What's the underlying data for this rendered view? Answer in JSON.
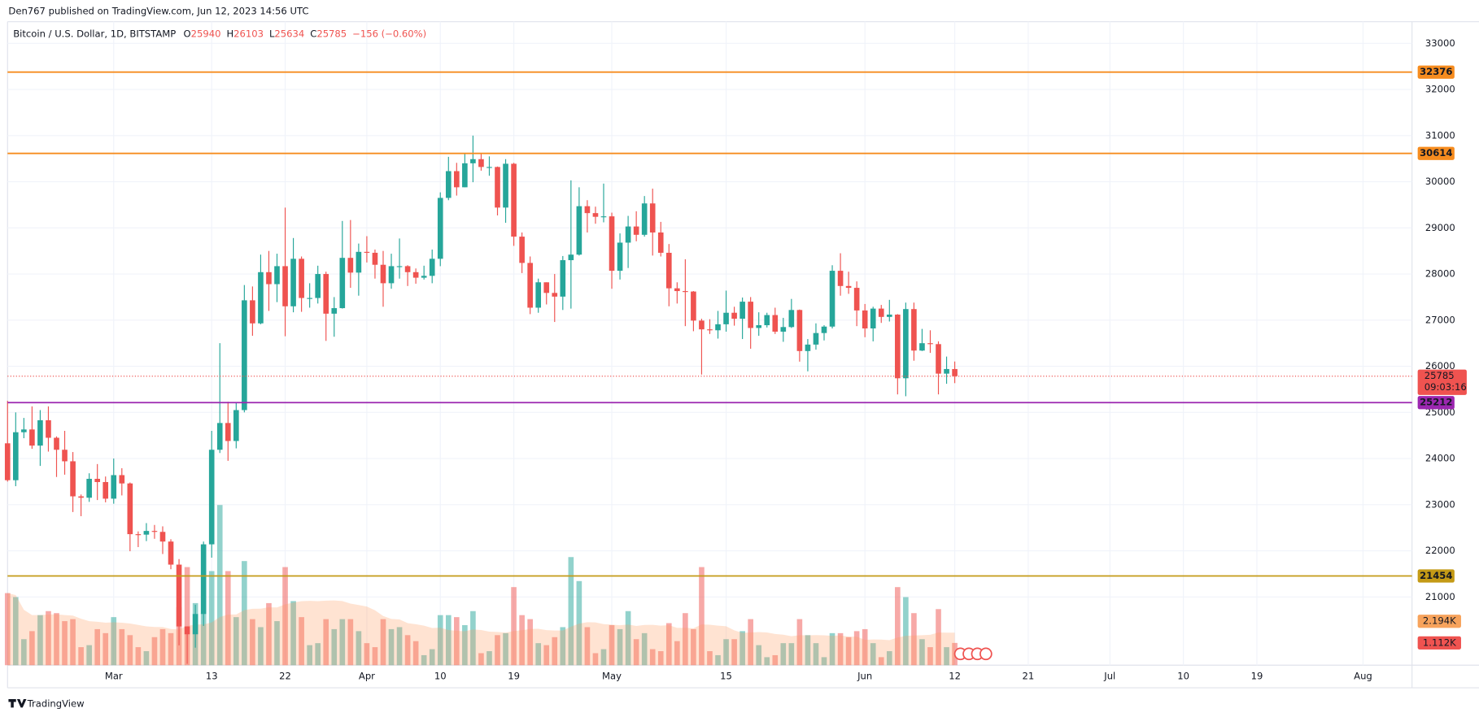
{
  "header": {
    "publisher": "Den767 published on TradingView.com, Jun 12, 2023 14:56 UTC",
    "symbol": "Bitcoin / U.S. Dollar, 1D, BITSTAMP",
    "ohlc_labels": [
      "O",
      "H",
      "L",
      "C"
    ],
    "change": "−156 (−0.60%)",
    "countdown": "09:03:16"
  },
  "footer": {
    "brand": "TradingView"
  },
  "chart_data": {
    "type": "candlestick",
    "categories": [
      "Feb 16",
      "Feb 17",
      "Feb 18",
      "Feb 19",
      "Feb 20",
      "Feb 21",
      "Feb 22",
      "Feb 23",
      "Feb 24",
      "Feb 25",
      "Feb 26",
      "Feb 27",
      "Feb 28",
      "Mar 1",
      "Mar 2",
      "Mar 3",
      "Mar 4",
      "Mar 5",
      "Mar 6",
      "Mar 7",
      "Mar 8",
      "Mar 9",
      "Mar 10",
      "Mar 11",
      "Mar 12",
      "Mar 13",
      "Mar 14",
      "Mar 15",
      "Mar 16",
      "Mar 17",
      "Mar 18",
      "Mar 19",
      "Mar 20",
      "Mar 21",
      "Mar 22",
      "Mar 23",
      "Mar 24",
      "Mar 25",
      "Mar 26",
      "Mar 27",
      "Mar 28",
      "Mar 29",
      "Mar 30",
      "Mar 31",
      "Apr 1",
      "Apr 2",
      "Apr 3",
      "Apr 4",
      "Apr 5",
      "Apr 6",
      "Apr 7",
      "Apr 8",
      "Apr 9",
      "Apr 10",
      "Apr 11",
      "Apr 12",
      "Apr 13",
      "Apr 14",
      "Apr 15",
      "Apr 16",
      "Apr 17",
      "Apr 18",
      "Apr 19",
      "Apr 20",
      "Apr 21",
      "Apr 22",
      "Apr 23",
      "Apr 24",
      "Apr 25",
      "Apr 26",
      "Apr 27",
      "Apr 28",
      "Apr 29",
      "Apr 30",
      "May 1",
      "May 2",
      "May 3",
      "May 4",
      "May 5",
      "May 6",
      "May 7",
      "May 8",
      "May 9",
      "May 10",
      "May 11",
      "May 12",
      "May 13",
      "May 14",
      "May 15",
      "May 16",
      "May 17",
      "May 18",
      "May 19",
      "May 20",
      "May 21",
      "May 22",
      "May 23",
      "May 24",
      "May 25",
      "May 26",
      "May 27",
      "May 28",
      "May 29",
      "May 30",
      "May 31",
      "Jun 1",
      "Jun 2",
      "Jun 3",
      "Jun 4",
      "Jun 5",
      "Jun 6",
      "Jun 7",
      "Jun 8",
      "Jun 9",
      "Jun 10",
      "Jun 11",
      "Jun 12"
    ],
    "open": [
      24330,
      23530,
      24570,
      24630,
      24280,
      24830,
      24450,
      24190,
      23940,
      23180,
      23150,
      23560,
      23490,
      23130,
      23640,
      23460,
      22360,
      22350,
      22430,
      22410,
      22200,
      21700,
      20360,
      20190,
      20630,
      22140,
      24190,
      24770,
      24380,
      25050,
      27430,
      26930,
      28040,
      27780,
      28170,
      27300,
      28330,
      27480,
      27480,
      28000,
      27140,
      27260,
      28350,
      28030,
      28480,
      28460,
      28200,
      27800,
      28170,
      28170,
      28040,
      27920,
      27960,
      28330,
      29650,
      30230,
      29880,
      30400,
      30490,
      30320,
      30320,
      29440,
      30390,
      28810,
      28240,
      27270,
      27820,
      27590,
      27510,
      28300,
      28420,
      29470,
      29320,
      29240,
      29250,
      28070,
      28680,
      29030,
      28850,
      29530,
      28900,
      28460,
      27690,
      27630,
      27620,
      26990,
      26800,
      26780,
      26910,
      27160,
      27030,
      27400,
      26830,
      26890,
      27110,
      26750,
      26850,
      27220,
      26330,
      26470,
      26720,
      26860,
      28070,
      27740,
      27700,
      27210,
      26820,
      27250,
      27070,
      27120,
      25740,
      27240,
      26340,
      26500,
      26480,
      25840,
      25940
    ],
    "high": [
      25250,
      25000,
      24880,
      25130,
      25050,
      25130,
      24480,
      24600,
      24140,
      23220,
      23680,
      23880,
      23610,
      24000,
      23790,
      23480,
      22420,
      22600,
      22560,
      22530,
      22250,
      21820,
      20360,
      20830,
      22200,
      24600,
      26500,
      25230,
      25200,
      27760,
      27730,
      28420,
      28500,
      28440,
      29440,
      28780,
      28380,
      27800,
      28180,
      28050,
      27500,
      29150,
      29170,
      28660,
      28820,
      28530,
      28500,
      28440,
      28770,
      28190,
      28120,
      28180,
      28530,
      29770,
      30540,
      30410,
      30600,
      31000,
      30600,
      30550,
      30330,
      30490,
      30410,
      28900,
      28380,
      27900,
      27820,
      28000,
      28390,
      30030,
      29880,
      29600,
      29460,
      29960,
      29330,
      28880,
      29260,
      29360,
      29690,
      29850,
      29130,
      28650,
      27820,
      28320,
      27630,
      27030,
      27020,
      27200,
      27640,
      27290,
      27490,
      27500,
      27170,
      27160,
      27270,
      27050,
      27460,
      27230,
      26590,
      26930,
      26890,
      28190,
      28450,
      28050,
      27840,
      27350,
      27290,
      27330,
      27440,
      27130,
      27380,
      27380,
      26810,
      26780,
      26540,
      26210,
      26103
    ],
    "low": [
      23500,
      23400,
      24440,
      24210,
      23840,
      24150,
      23600,
      23650,
      22840,
      22750,
      23060,
      23100,
      23050,
      23020,
      23200,
      21990,
      22080,
      22210,
      22260,
      21930,
      21600,
      19950,
      19550,
      19900,
      20370,
      21850,
      24120,
      23950,
      24220,
      25000,
      26660,
      26910,
      27200,
      27390,
      26650,
      27170,
      27180,
      27270,
      27360,
      26550,
      26640,
      27250,
      27700,
      27530,
      28250,
      27900,
      27290,
      27680,
      27900,
      27740,
      27790,
      27880,
      27800,
      28170,
      29600,
      29700,
      29880,
      29990,
      30240,
      30130,
      29270,
      29110,
      28610,
      28020,
      27130,
      27160,
      27340,
      26960,
      27220,
      27250,
      28400,
      28900,
      29090,
      29120,
      27680,
      27880,
      28130,
      28710,
      28810,
      28400,
      28380,
      27300,
      27360,
      26870,
      26760,
      25820,
      26700,
      26600,
      26750,
      26880,
      26590,
      26380,
      26660,
      26840,
      26700,
      26530,
      26830,
      26100,
      25890,
      26360,
      26560,
      26820,
      27530,
      27570,
      26870,
      26630,
      26540,
      26940,
      26970,
      25390,
      25350,
      26120,
      26330,
      26290,
      25390,
      25620,
      25634
    ],
    "close": [
      23530,
      24570,
      24630,
      24280,
      24830,
      24450,
      24190,
      23940,
      23180,
      23150,
      23560,
      23490,
      23130,
      23640,
      23460,
      22360,
      22350,
      22430,
      22410,
      22200,
      21700,
      20360,
      20190,
      20630,
      22140,
      24190,
      24770,
      24380,
      25050,
      27430,
      26930,
      28040,
      27780,
      28170,
      27300,
      28330,
      27480,
      27480,
      28000,
      27140,
      27260,
      28350,
      28030,
      28480,
      28460,
      28200,
      27800,
      28170,
      28170,
      28040,
      27920,
      27960,
      28330,
      29650,
      30230,
      29880,
      30400,
      30490,
      30320,
      30320,
      29440,
      30390,
      28810,
      28240,
      27270,
      27820,
      27590,
      27510,
      28300,
      28420,
      29470,
      29320,
      29240,
      29250,
      28070,
      28680,
      29030,
      28850,
      29530,
      28900,
      28460,
      27690,
      27630,
      27620,
      26990,
      26800,
      26780,
      26910,
      27160,
      27030,
      27400,
      26830,
      26890,
      27110,
      26750,
      26850,
      27220,
      26330,
      26470,
      26720,
      26860,
      28070,
      27740,
      27700,
      27210,
      26820,
      27250,
      27070,
      27120,
      25740,
      27240,
      26340,
      26500,
      26480,
      25840,
      25940,
      25785
    ],
    "volume": [
      3600,
      3400,
      1300,
      1700,
      2500,
      2700,
      2600,
      2200,
      2300,
      900,
      1000,
      1800,
      1600,
      2400,
      1800,
      1500,
      900,
      700,
      1400,
      1800,
      1600,
      2900,
      4900,
      3100,
      2600,
      4700,
      8000,
      4700,
      2400,
      5200,
      2300,
      1900,
      3100,
      2200,
      4900,
      3200,
      2400,
      1000,
      1100,
      2300,
      1800,
      2300,
      2300,
      1700,
      1100,
      900,
      2300,
      1800,
      1900,
      1500,
      1200,
      500,
      800,
      2500,
      2500,
      2400,
      2000,
      2700,
      600,
      700,
      1500,
      1600,
      3900,
      2500,
      2300,
      1100,
      1000,
      1400,
      1900,
      5400,
      4200,
      1900,
      600,
      800,
      2000,
      1800,
      2700,
      1300,
      1600,
      800,
      700,
      2100,
      1200,
      2600,
      1800,
      4900,
      700,
      500,
      1300,
      1300,
      1700,
      2300,
      1000,
      400,
      500,
      1100,
      1100,
      2300,
      1500,
      1100,
      400,
      1600,
      1600,
      1400,
      1700,
      1800,
      1100,
      400,
      700,
      3900,
      3400,
      2600,
      1300,
      900,
      2800,
      900,
      1112
    ],
    "up_color": "#26a69a",
    "down_color": "#ef5350",
    "volume_label": {
      "value": 1112,
      "label": "1.112K"
    },
    "volume_ma_label": {
      "value": 2194,
      "label": "2.194K"
    },
    "levels": [
      {
        "value": 32376,
        "color": "#f68c1f"
      },
      {
        "value": 30614,
        "color": "#f68c1f"
      },
      {
        "value": 25212,
        "color": "#9c27b0"
      },
      {
        "value": 21454,
        "color": "#c49a16"
      }
    ],
    "xlim": [
      "Feb 16",
      "Aug 7"
    ],
    "xticks": [
      {
        "value": "Mar 1",
        "label": "Mar"
      },
      {
        "value": "Mar 13",
        "label": "13"
      },
      {
        "value": "Mar 22",
        "label": "22"
      },
      {
        "value": "Apr 1",
        "label": "Apr"
      },
      {
        "value": "Apr 10",
        "label": "10"
      },
      {
        "value": "Apr 19",
        "label": "19"
      },
      {
        "value": "May 1",
        "label": "May"
      },
      {
        "value": "May 15",
        "label": "15"
      },
      {
        "value": "Jun 1",
        "label": "Jun"
      },
      {
        "value": "Jun 12",
        "label": "12"
      },
      {
        "value": "Jun 21",
        "label": "21"
      },
      {
        "value": "Jul 1",
        "label": "Jul"
      },
      {
        "value": "Jul 10",
        "label": "10"
      },
      {
        "value": "Jul 19",
        "label": "19"
      },
      {
        "value": "Aug 1",
        "label": "Aug"
      }
    ],
    "ylim": [
      19520,
      33470
    ],
    "yticks": [
      21000,
      22000,
      23000,
      24000,
      25000,
      26000,
      27000,
      28000,
      29000,
      30000,
      31000,
      32000,
      33000
    ],
    "grid": true
  }
}
